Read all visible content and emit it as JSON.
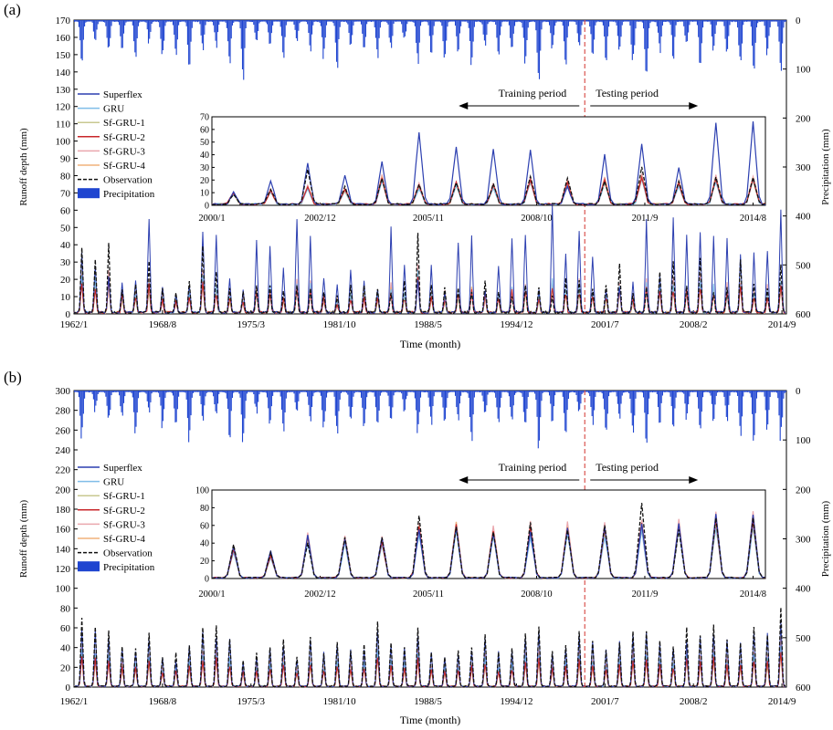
{
  "colors": {
    "superflex": "#2c3fb0",
    "gru": "#7fbde8",
    "sf_gru_1": "#c8c890",
    "sf_gru_2": "#c8262a",
    "sf_gru_3": "#eaa7ad",
    "sf_gru_4": "#f0b27a",
    "observation": "#111111",
    "precipitation": "#1f45d0",
    "split_line": "#d9534f"
  },
  "chart_data": [
    {
      "panel_label": "(a)",
      "type": "line",
      "title": "",
      "xlabel": "Time (month)",
      "ylabel": "Runoff depth (mm)",
      "ylabel_right": "Precipitation (mm)",
      "ylim": [
        0,
        170
      ],
      "yticks": [
        "0",
        "10",
        "20",
        "30",
        "40",
        "50",
        "60",
        "70",
        "80",
        "90",
        "100",
        "110",
        "120",
        "130",
        "140",
        "150",
        "160",
        "170"
      ],
      "y2lim": [
        0,
        600
      ],
      "y2ticks": [
        "0",
        "100",
        "200",
        "300",
        "400",
        "500",
        "600"
      ],
      "xlim": [
        "1962/1",
        "2014/12"
      ],
      "xticks": [
        "1962/1",
        "1968/8",
        "1975/3",
        "1981/10",
        "1988/5",
        "1994/12",
        "2001/7",
        "2008/2",
        "2014/9"
      ],
      "split_date": "2000/1",
      "training_label": "Training period",
      "testing_label": "Testing period",
      "legend": [
        "Superflex",
        "GRU",
        "Sf-GRU-1",
        "Sf-GRU-2",
        "Sf-GRU-3",
        "Sf-GRU-4",
        "Observation",
        "Precipitation"
      ],
      "precip_annual_peak_mm": [
        95,
        40,
        70,
        60,
        85,
        45,
        75,
        70,
        110,
        60,
        55,
        90,
        120,
        45,
        65,
        80,
        40,
        60,
        75,
        95,
        55,
        70,
        85,
        60,
        45,
        90,
        70,
        80,
        60,
        100,
        55,
        75,
        65,
        85,
        120,
        60,
        90,
        50,
        70,
        80,
        60,
        95,
        110,
        65,
        75,
        55,
        85,
        60,
        70,
        90,
        105,
        80,
        100
      ],
      "annual_peak_superflex": [
        36,
        30,
        22,
        18,
        20,
        60,
        16,
        12,
        18,
        50,
        48,
        20,
        14,
        44,
        42,
        26,
        58,
        44,
        22,
        16,
        26,
        18,
        14,
        50,
        30,
        20,
        28,
        12,
        44,
        46,
        14,
        30,
        44,
        50,
        14,
        62,
        36,
        50,
        34,
        14,
        16,
        18,
        56,
        22,
        56,
        46,
        48,
        46,
        44,
        34,
        36,
        38,
        62
      ],
      "annual_peak_observation": [
        38,
        30,
        40,
        14,
        16,
        30,
        14,
        12,
        18,
        38,
        24,
        14,
        12,
        15,
        16,
        13,
        16,
        14,
        12,
        10,
        16,
        16,
        14,
        12,
        18,
        46,
        16,
        14,
        14,
        12,
        18,
        12,
        10,
        16,
        14,
        10,
        20,
        18,
        14,
        16,
        28,
        12,
        14,
        24,
        30,
        16,
        32,
        12,
        14,
        30,
        16,
        14,
        28
      ],
      "inset": {
        "xticks": [
          "2000/1",
          "2002/12",
          "2005/11",
          "2008/10",
          "2011/9",
          "2014/8"
        ],
        "ylim": [
          0,
          70
        ],
        "yticks": [
          "0",
          "10",
          "20",
          "30",
          "40",
          "50",
          "60",
          "70"
        ],
        "annual_peak_superflex": [
          10,
          19,
          32,
          23,
          34,
          57,
          46,
          44,
          43,
          14,
          39,
          48,
          29,
          65
        ],
        "annual_peak_observation": [
          8,
          12,
          27,
          14,
          21,
          16,
          17,
          16,
          22,
          21,
          19,
          30,
          18,
          21
        ],
        "annual_peak_sf_gru": [
          9,
          11,
          14,
          12,
          21,
          15,
          17,
          15,
          20,
          18,
          20,
          22,
          17,
          21
        ]
      }
    },
    {
      "panel_label": "(b)",
      "type": "line",
      "title": "",
      "xlabel": "Time (month)",
      "ylabel": "Runoff depth (mm)",
      "ylabel_right": "Precipitation (mm)",
      "ylim": [
        0,
        300
      ],
      "yticks": [
        "0",
        "20",
        "40",
        "60",
        "80",
        "100",
        "120",
        "140",
        "160",
        "180",
        "200",
        "220",
        "240",
        "260",
        "280",
        "300"
      ],
      "y2lim": [
        0,
        600
      ],
      "y2ticks": [
        "0",
        "100",
        "200",
        "300",
        "400",
        "500",
        "600"
      ],
      "xlim": [
        "1962/1",
        "2014/12"
      ],
      "xticks": [
        "1962/1",
        "1968/8",
        "1975/3",
        "1981/10",
        "1988/5",
        "1994/12",
        "2001/7",
        "2008/2",
        "2014/9"
      ],
      "split_date": "2000/1",
      "training_label": "Training period",
      "testing_label": "Testing period",
      "legend": [
        "Superflex",
        "GRU",
        "Sf-GRU-1",
        "Sf-GRU-2",
        "Sf-GRU-3",
        "Sf-GRU-4",
        "Observation",
        "Precipitation"
      ],
      "precip_annual_peak_mm": [
        95,
        40,
        70,
        60,
        85,
        45,
        75,
        70,
        110,
        60,
        55,
        90,
        120,
        45,
        65,
        80,
        40,
        60,
        75,
        95,
        55,
        70,
        85,
        60,
        45,
        90,
        70,
        80,
        60,
        100,
        55,
        75,
        65,
        85,
        120,
        60,
        90,
        50,
        70,
        80,
        60,
        95,
        110,
        65,
        75,
        55,
        85,
        60,
        70,
        90,
        105,
        80,
        100
      ],
      "annual_peak_superflex": [
        60,
        58,
        52,
        40,
        36,
        52,
        32,
        28,
        44,
        60,
        54,
        52,
        24,
        30,
        40,
        44,
        30,
        52,
        36,
        46,
        38,
        40,
        58,
        44,
        40,
        56,
        36,
        30,
        34,
        38,
        50,
        36,
        38,
        52,
        60,
        34,
        42,
        56,
        48,
        40,
        46,
        54,
        58,
        48,
        42,
        46,
        54,
        58,
        50,
        44,
        56,
        60,
        70
      ],
      "annual_peak_observation": [
        70,
        60,
        56,
        40,
        38,
        54,
        30,
        34,
        42,
        60,
        62,
        48,
        26,
        34,
        40,
        48,
        30,
        50,
        34,
        44,
        36,
        42,
        66,
        44,
        40,
        60,
        34,
        30,
        36,
        40,
        52,
        34,
        38,
        54,
        60,
        36,
        42,
        56,
        46,
        36,
        44,
        56,
        56,
        46,
        40,
        60,
        52,
        62,
        48,
        44,
        60,
        52,
        80
      ],
      "inset": {
        "xticks": [
          "2000/1",
          "2002/12",
          "2005/11",
          "2008/10",
          "2011/9",
          "2014/8"
        ],
        "ylim": [
          0,
          100
        ],
        "yticks": [
          "0",
          "20",
          "40",
          "60",
          "80",
          "100"
        ],
        "annual_peak_superflex": [
          36,
          30,
          48,
          44,
          46,
          54,
          58,
          50,
          52,
          56,
          58,
          62,
          62,
          72
        ],
        "annual_peak_observation": [
          38,
          28,
          40,
          46,
          46,
          70,
          58,
          52,
          62,
          54,
          60,
          84,
          54,
          68
        ],
        "annual_peak_sf_gru": [
          34,
          26,
          46,
          44,
          42,
          58,
          60,
          54,
          56,
          58,
          56,
          62,
          60,
          66
        ]
      }
    }
  ]
}
